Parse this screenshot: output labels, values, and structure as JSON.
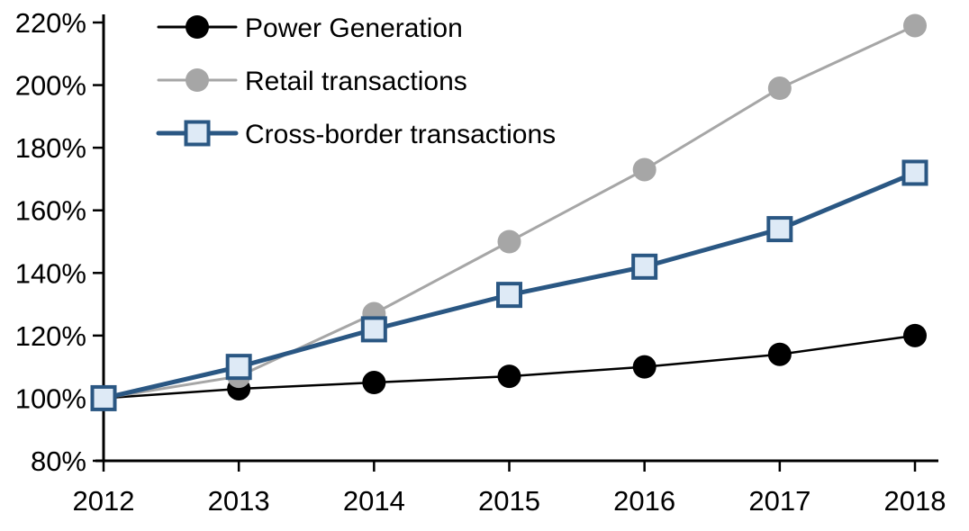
{
  "chart_data": {
    "type": "line",
    "title": "",
    "xlabel": "",
    "ylabel": "",
    "x_labels": [
      "2012",
      "2013",
      "2014",
      "2015",
      "2016",
      "2017",
      "2018"
    ],
    "y_axis": {
      "min": 80,
      "max": 220,
      "step": 20,
      "tick_labels": [
        "80%",
        "100%",
        "120%",
        "140%",
        "160%",
        "180%",
        "200%",
        "220%"
      ],
      "unit": "percent"
    },
    "grid": false,
    "legend_position": "top-left",
    "series": [
      {
        "name": "Power Generation",
        "values": [
          100,
          103,
          105,
          107,
          110,
          114,
          120
        ],
        "color": "#000000",
        "marker": "circle",
        "marker_fill": "#000000",
        "line_width": 2.5
      },
      {
        "name": "Retail transactions",
        "values": [
          100,
          107,
          127,
          150,
          173,
          199,
          219
        ],
        "color": "#A6A6A6",
        "marker": "circle",
        "marker_fill": "#A6A6A6",
        "line_width": 3
      },
      {
        "name": "Cross-border transactions",
        "values": [
          100,
          110,
          122,
          133,
          142,
          154,
          172
        ],
        "color": "#2A5783",
        "marker": "square",
        "marker_fill": "#DEEAF6",
        "line_width": 5
      }
    ],
    "colors": {
      "axis": "#000000",
      "background": "#FFFFFF"
    }
  }
}
